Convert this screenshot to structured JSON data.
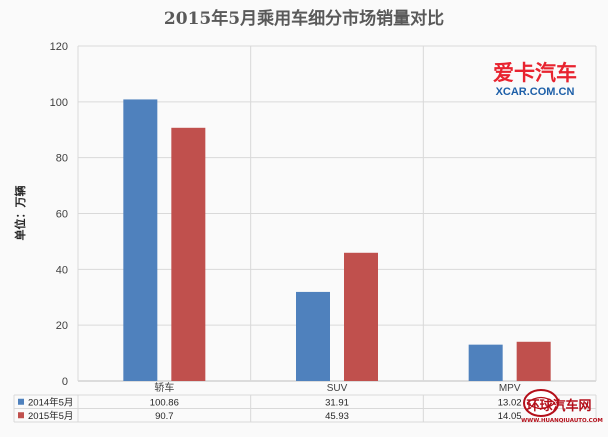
{
  "chart_data": {
    "type": "bar",
    "title": "2015年5月乘用车细分市场销量对比",
    "ylabel": "单位：万辆",
    "xlabel": "",
    "categories": [
      "轿车",
      "SUV",
      "MPV"
    ],
    "ylim": [
      0,
      120
    ],
    "yticks": [
      0,
      20,
      40,
      60,
      80,
      100,
      120
    ],
    "grid": true,
    "legend": "data-table",
    "series": [
      {
        "name": "2014年5月",
        "color": "#4f81bd",
        "values": [
          100.86,
          31.91,
          13.02
        ],
        "labels": [
          "100.86",
          "31.91",
          "13.02"
        ]
      },
      {
        "name": "2015年5月",
        "color": "#c0504d",
        "values": [
          90.7,
          45.93,
          14.05
        ],
        "labels": [
          "90.7",
          "45.93",
          "14.05"
        ]
      }
    ]
  },
  "logo": {
    "name": "爱卡汽车",
    "url_text": "XCAR.COM.CN"
  },
  "watermark": {
    "name": "环球汽车网",
    "url_text": "WWW.HUANQIUAUTO.COM"
  }
}
